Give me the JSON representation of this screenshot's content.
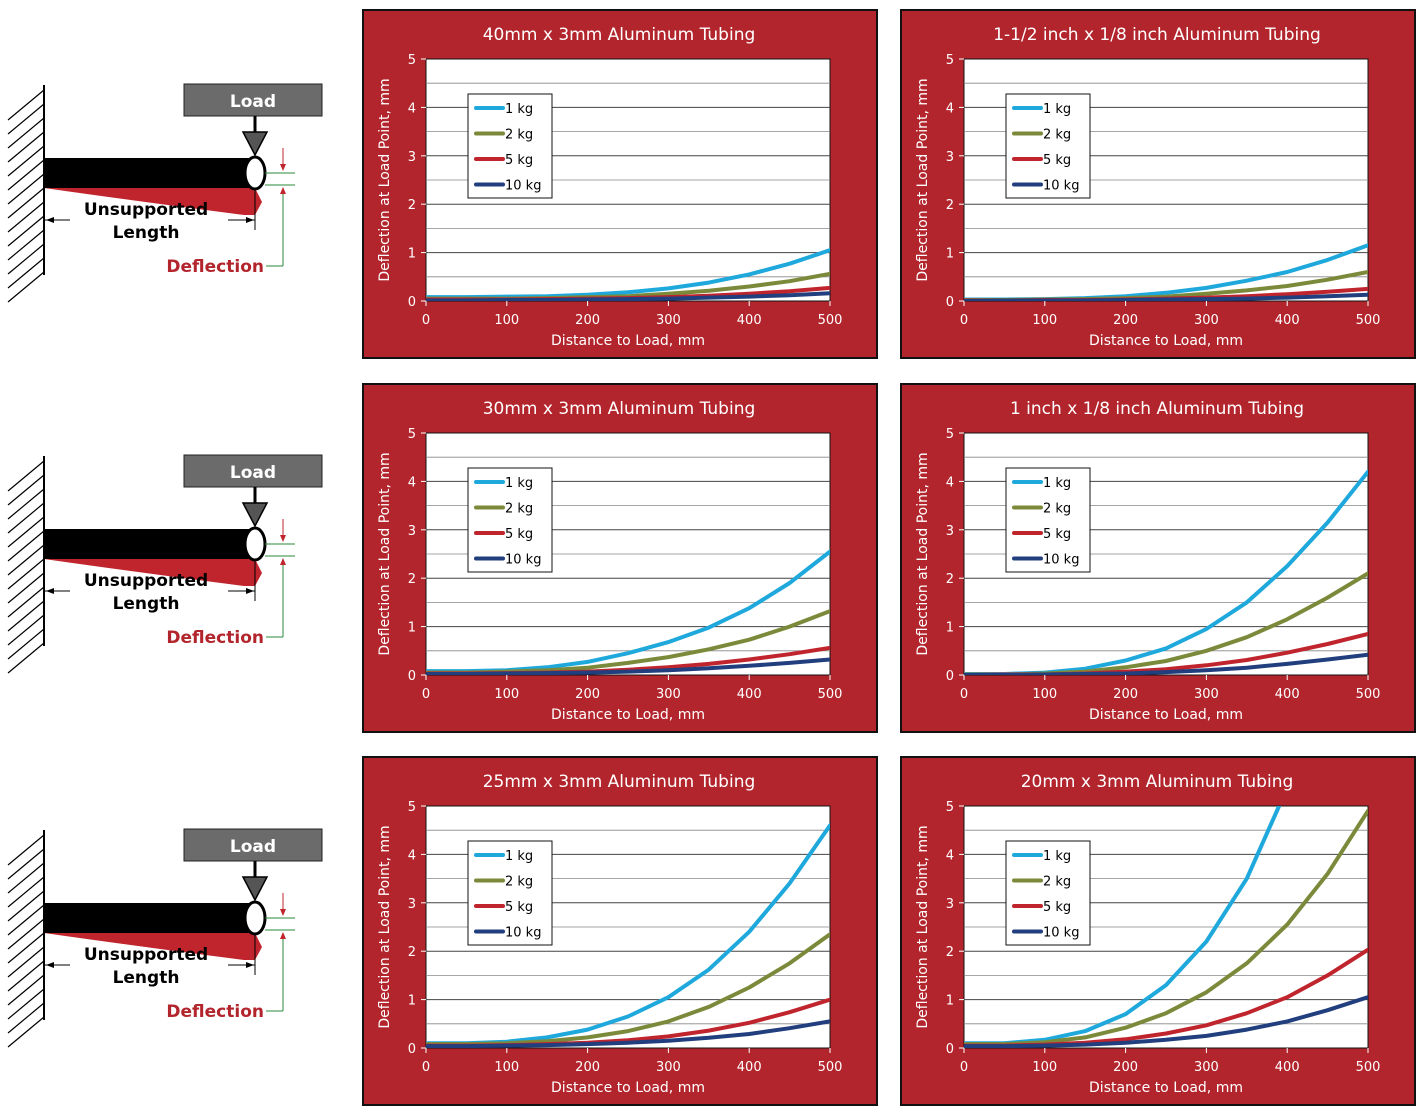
{
  "diagram": {
    "load_label": "Load",
    "length_label_line1": "Unsupported",
    "length_label_line2": "Length",
    "deflection_label": "Deflection"
  },
  "colors": {
    "panel_bg": "#b3252d",
    "series_1kg": "#1ea8dc",
    "series_2kg": "#7b8a3a",
    "series_5kg": "#c0252e",
    "series_10kg": "#213e7e",
    "deflection_text": "#b3252d"
  },
  "chart_data": [
    {
      "type": "line",
      "title": "40mm x 3mm Aluminum Tubing",
      "xlabel": "Distance to Load, mm",
      "ylabel": "Deflection at Load Point, mm",
      "xlim": [
        0,
        500
      ],
      "ylim": [
        0,
        5
      ],
      "xticks": [
        0,
        100,
        200,
        300,
        400,
        500
      ],
      "yticks": [
        0,
        1,
        2,
        3,
        4,
        5
      ],
      "grid": true,
      "legend": "top-left",
      "x": [
        0,
        50,
        100,
        150,
        200,
        250,
        300,
        350,
        400,
        450,
        500
      ],
      "series": [
        {
          "name": "1 kg",
          "color": "#1ea8dc",
          "values": [
            0.08,
            0.08,
            0.09,
            0.1,
            0.13,
            0.18,
            0.26,
            0.38,
            0.55,
            0.77,
            1.05
          ]
        },
        {
          "name": "2 kg",
          "color": "#7b8a3a",
          "values": [
            0.05,
            0.05,
            0.05,
            0.06,
            0.08,
            0.1,
            0.15,
            0.21,
            0.3,
            0.41,
            0.56
          ]
        },
        {
          "name": "5 kg",
          "color": "#c0252e",
          "values": [
            0.03,
            0.03,
            0.03,
            0.04,
            0.05,
            0.06,
            0.08,
            0.11,
            0.15,
            0.2,
            0.27
          ]
        },
        {
          "name": "10 kg",
          "color": "#213e7e",
          "values": [
            0.01,
            0.01,
            0.02,
            0.02,
            0.03,
            0.04,
            0.05,
            0.07,
            0.09,
            0.12,
            0.16
          ]
        }
      ]
    },
    {
      "type": "line",
      "title": "1-1/2 inch x 1/8 inch Aluminum Tubing",
      "xlabel": "Distance to Load, mm",
      "ylabel": "Deflection at Load Point, mm",
      "xlim": [
        0,
        500
      ],
      "ylim": [
        0,
        5
      ],
      "xticks": [
        0,
        100,
        200,
        300,
        400,
        500
      ],
      "yticks": [
        0,
        1,
        2,
        3,
        4,
        5
      ],
      "grid": true,
      "legend": "top-left",
      "x": [
        0,
        50,
        100,
        150,
        200,
        250,
        300,
        350,
        400,
        450,
        500
      ],
      "series": [
        {
          "name": "1 kg",
          "color": "#1ea8dc",
          "values": [
            0.03,
            0.03,
            0.04,
            0.06,
            0.1,
            0.17,
            0.27,
            0.42,
            0.6,
            0.85,
            1.15
          ]
        },
        {
          "name": "2 kg",
          "color": "#7b8a3a",
          "values": [
            0.02,
            0.02,
            0.03,
            0.04,
            0.06,
            0.09,
            0.15,
            0.22,
            0.31,
            0.44,
            0.6
          ]
        },
        {
          "name": "5 kg",
          "color": "#c0252e",
          "values": [
            0.01,
            0.01,
            0.02,
            0.02,
            0.03,
            0.05,
            0.07,
            0.1,
            0.14,
            0.19,
            0.25
          ]
        },
        {
          "name": "10 kg",
          "color": "#213e7e",
          "values": [
            0,
            0.01,
            0.01,
            0.01,
            0.02,
            0.03,
            0.04,
            0.05,
            0.07,
            0.1,
            0.13
          ]
        }
      ]
    },
    {
      "type": "line",
      "title": "30mm x 3mm Aluminum Tubing",
      "xlabel": "Distance to Load, mm",
      "ylabel": "Deflection at Load Point, mm",
      "xlim": [
        0,
        500
      ],
      "ylim": [
        0,
        5
      ],
      "xticks": [
        0,
        100,
        200,
        300,
        400,
        500
      ],
      "yticks": [
        0,
        1,
        2,
        3,
        4,
        5
      ],
      "grid": true,
      "legend": "top-left",
      "x": [
        0,
        50,
        100,
        150,
        200,
        250,
        300,
        350,
        400,
        450,
        500
      ],
      "series": [
        {
          "name": "1 kg",
          "color": "#1ea8dc",
          "values": [
            0.08,
            0.08,
            0.1,
            0.16,
            0.27,
            0.45,
            0.68,
            0.98,
            1.38,
            1.9,
            2.55
          ]
        },
        {
          "name": "2 kg",
          "color": "#7b8a3a",
          "values": [
            0.05,
            0.05,
            0.07,
            0.1,
            0.15,
            0.25,
            0.37,
            0.53,
            0.73,
            1.0,
            1.32
          ]
        },
        {
          "name": "5 kg",
          "color": "#c0252e",
          "values": [
            0.03,
            0.03,
            0.04,
            0.05,
            0.07,
            0.11,
            0.16,
            0.23,
            0.32,
            0.43,
            0.56
          ]
        },
        {
          "name": "10 kg",
          "color": "#213e7e",
          "values": [
            0.02,
            0.02,
            0.03,
            0.04,
            0.05,
            0.07,
            0.1,
            0.14,
            0.19,
            0.25,
            0.32
          ]
        }
      ]
    },
    {
      "type": "line",
      "title": "1 inch x 1/8 inch Aluminum Tubing",
      "xlabel": "Distance to Load, mm",
      "ylabel": "Deflection at Load Point, mm",
      "xlim": [
        0,
        500
      ],
      "ylim": [
        0,
        5
      ],
      "xticks": [
        0,
        100,
        200,
        300,
        400,
        500
      ],
      "yticks": [
        0,
        1,
        2,
        3,
        4,
        5
      ],
      "grid": true,
      "legend": "top-left",
      "x": [
        0,
        50,
        100,
        150,
        200,
        250,
        300,
        350,
        400,
        450,
        500
      ],
      "series": [
        {
          "name": "1 kg",
          "color": "#1ea8dc",
          "values": [
            0.02,
            0.02,
            0.05,
            0.13,
            0.3,
            0.55,
            0.95,
            1.5,
            2.25,
            3.15,
            4.2
          ]
        },
        {
          "name": "2 kg",
          "color": "#7b8a3a",
          "values": [
            0.01,
            0.01,
            0.03,
            0.07,
            0.16,
            0.29,
            0.5,
            0.78,
            1.15,
            1.6,
            2.1
          ]
        },
        {
          "name": "5 kg",
          "color": "#c0252e",
          "values": [
            0,
            0.01,
            0.01,
            0.03,
            0.07,
            0.12,
            0.2,
            0.31,
            0.46,
            0.64,
            0.85
          ]
        },
        {
          "name": "10 kg",
          "color": "#213e7e",
          "values": [
            0,
            0,
            0.01,
            0.02,
            0.03,
            0.06,
            0.1,
            0.15,
            0.23,
            0.32,
            0.42
          ]
        }
      ]
    },
    {
      "type": "line",
      "title": "25mm x 3mm Aluminum Tubing",
      "xlabel": "Distance to Load, mm",
      "ylabel": "Deflection at Load Point, mm",
      "xlim": [
        0,
        500
      ],
      "ylim": [
        0,
        5
      ],
      "xticks": [
        0,
        100,
        200,
        300,
        400,
        500
      ],
      "yticks": [
        0,
        1,
        2,
        3,
        4,
        5
      ],
      "grid": true,
      "legend": "top-left",
      "x": [
        0,
        50,
        100,
        150,
        200,
        250,
        300,
        350,
        400,
        450,
        500
      ],
      "series": [
        {
          "name": "1 kg",
          "color": "#1ea8dc",
          "values": [
            0.1,
            0.1,
            0.13,
            0.22,
            0.38,
            0.65,
            1.05,
            1.62,
            2.4,
            3.4,
            4.6
          ]
        },
        {
          "name": "2 kg",
          "color": "#7b8a3a",
          "values": [
            0.08,
            0.08,
            0.1,
            0.14,
            0.22,
            0.35,
            0.55,
            0.85,
            1.25,
            1.75,
            2.35
          ]
        },
        {
          "name": "5 kg",
          "color": "#c0252e",
          "values": [
            0.05,
            0.05,
            0.06,
            0.08,
            0.11,
            0.16,
            0.24,
            0.36,
            0.52,
            0.74,
            1.0
          ]
        },
        {
          "name": "10 kg",
          "color": "#213e7e",
          "values": [
            0.04,
            0.04,
            0.05,
            0.06,
            0.08,
            0.11,
            0.15,
            0.21,
            0.29,
            0.41,
            0.55
          ]
        }
      ]
    },
    {
      "type": "line",
      "title": "20mm x 3mm Aluminum Tubing",
      "xlabel": "Distance to Load, mm",
      "ylabel": "Deflection at Load Point, mm",
      "xlim": [
        0,
        500
      ],
      "ylim": [
        0,
        5
      ],
      "xticks": [
        0,
        100,
        200,
        300,
        400,
        500
      ],
      "yticks": [
        0,
        1,
        2,
        3,
        4,
        5
      ],
      "grid": true,
      "legend": "top-left",
      "x": [
        0,
        50,
        100,
        150,
        200,
        250,
        300,
        350,
        390,
        400,
        450,
        500
      ],
      "series": [
        {
          "name": "1 kg",
          "color": "#1ea8dc",
          "x": [
            0,
            50,
            100,
            150,
            200,
            250,
            300,
            350,
            390
          ],
          "values": [
            0.1,
            0.1,
            0.17,
            0.35,
            0.7,
            1.3,
            2.2,
            3.5,
            5.0
          ]
        },
        {
          "name": "2 kg",
          "color": "#7b8a3a",
          "x": [
            0,
            50,
            100,
            150,
            200,
            250,
            300,
            350,
            400,
            450,
            500
          ],
          "values": [
            0.08,
            0.08,
            0.12,
            0.22,
            0.42,
            0.72,
            1.15,
            1.75,
            2.55,
            3.6,
            4.9
          ]
        },
        {
          "name": "5 kg",
          "color": "#c0252e",
          "x": [
            0,
            50,
            100,
            150,
            200,
            250,
            300,
            350,
            400,
            450,
            500
          ],
          "values": [
            0.05,
            0.05,
            0.07,
            0.11,
            0.18,
            0.3,
            0.47,
            0.72,
            1.05,
            1.5,
            2.03
          ]
        },
        {
          "name": "10 kg",
          "color": "#213e7e",
          "x": [
            0,
            50,
            100,
            150,
            200,
            250,
            300,
            350,
            400,
            450,
            500
          ],
          "values": [
            0.04,
            0.04,
            0.05,
            0.07,
            0.11,
            0.17,
            0.25,
            0.38,
            0.55,
            0.78,
            1.05
          ]
        }
      ]
    }
  ]
}
